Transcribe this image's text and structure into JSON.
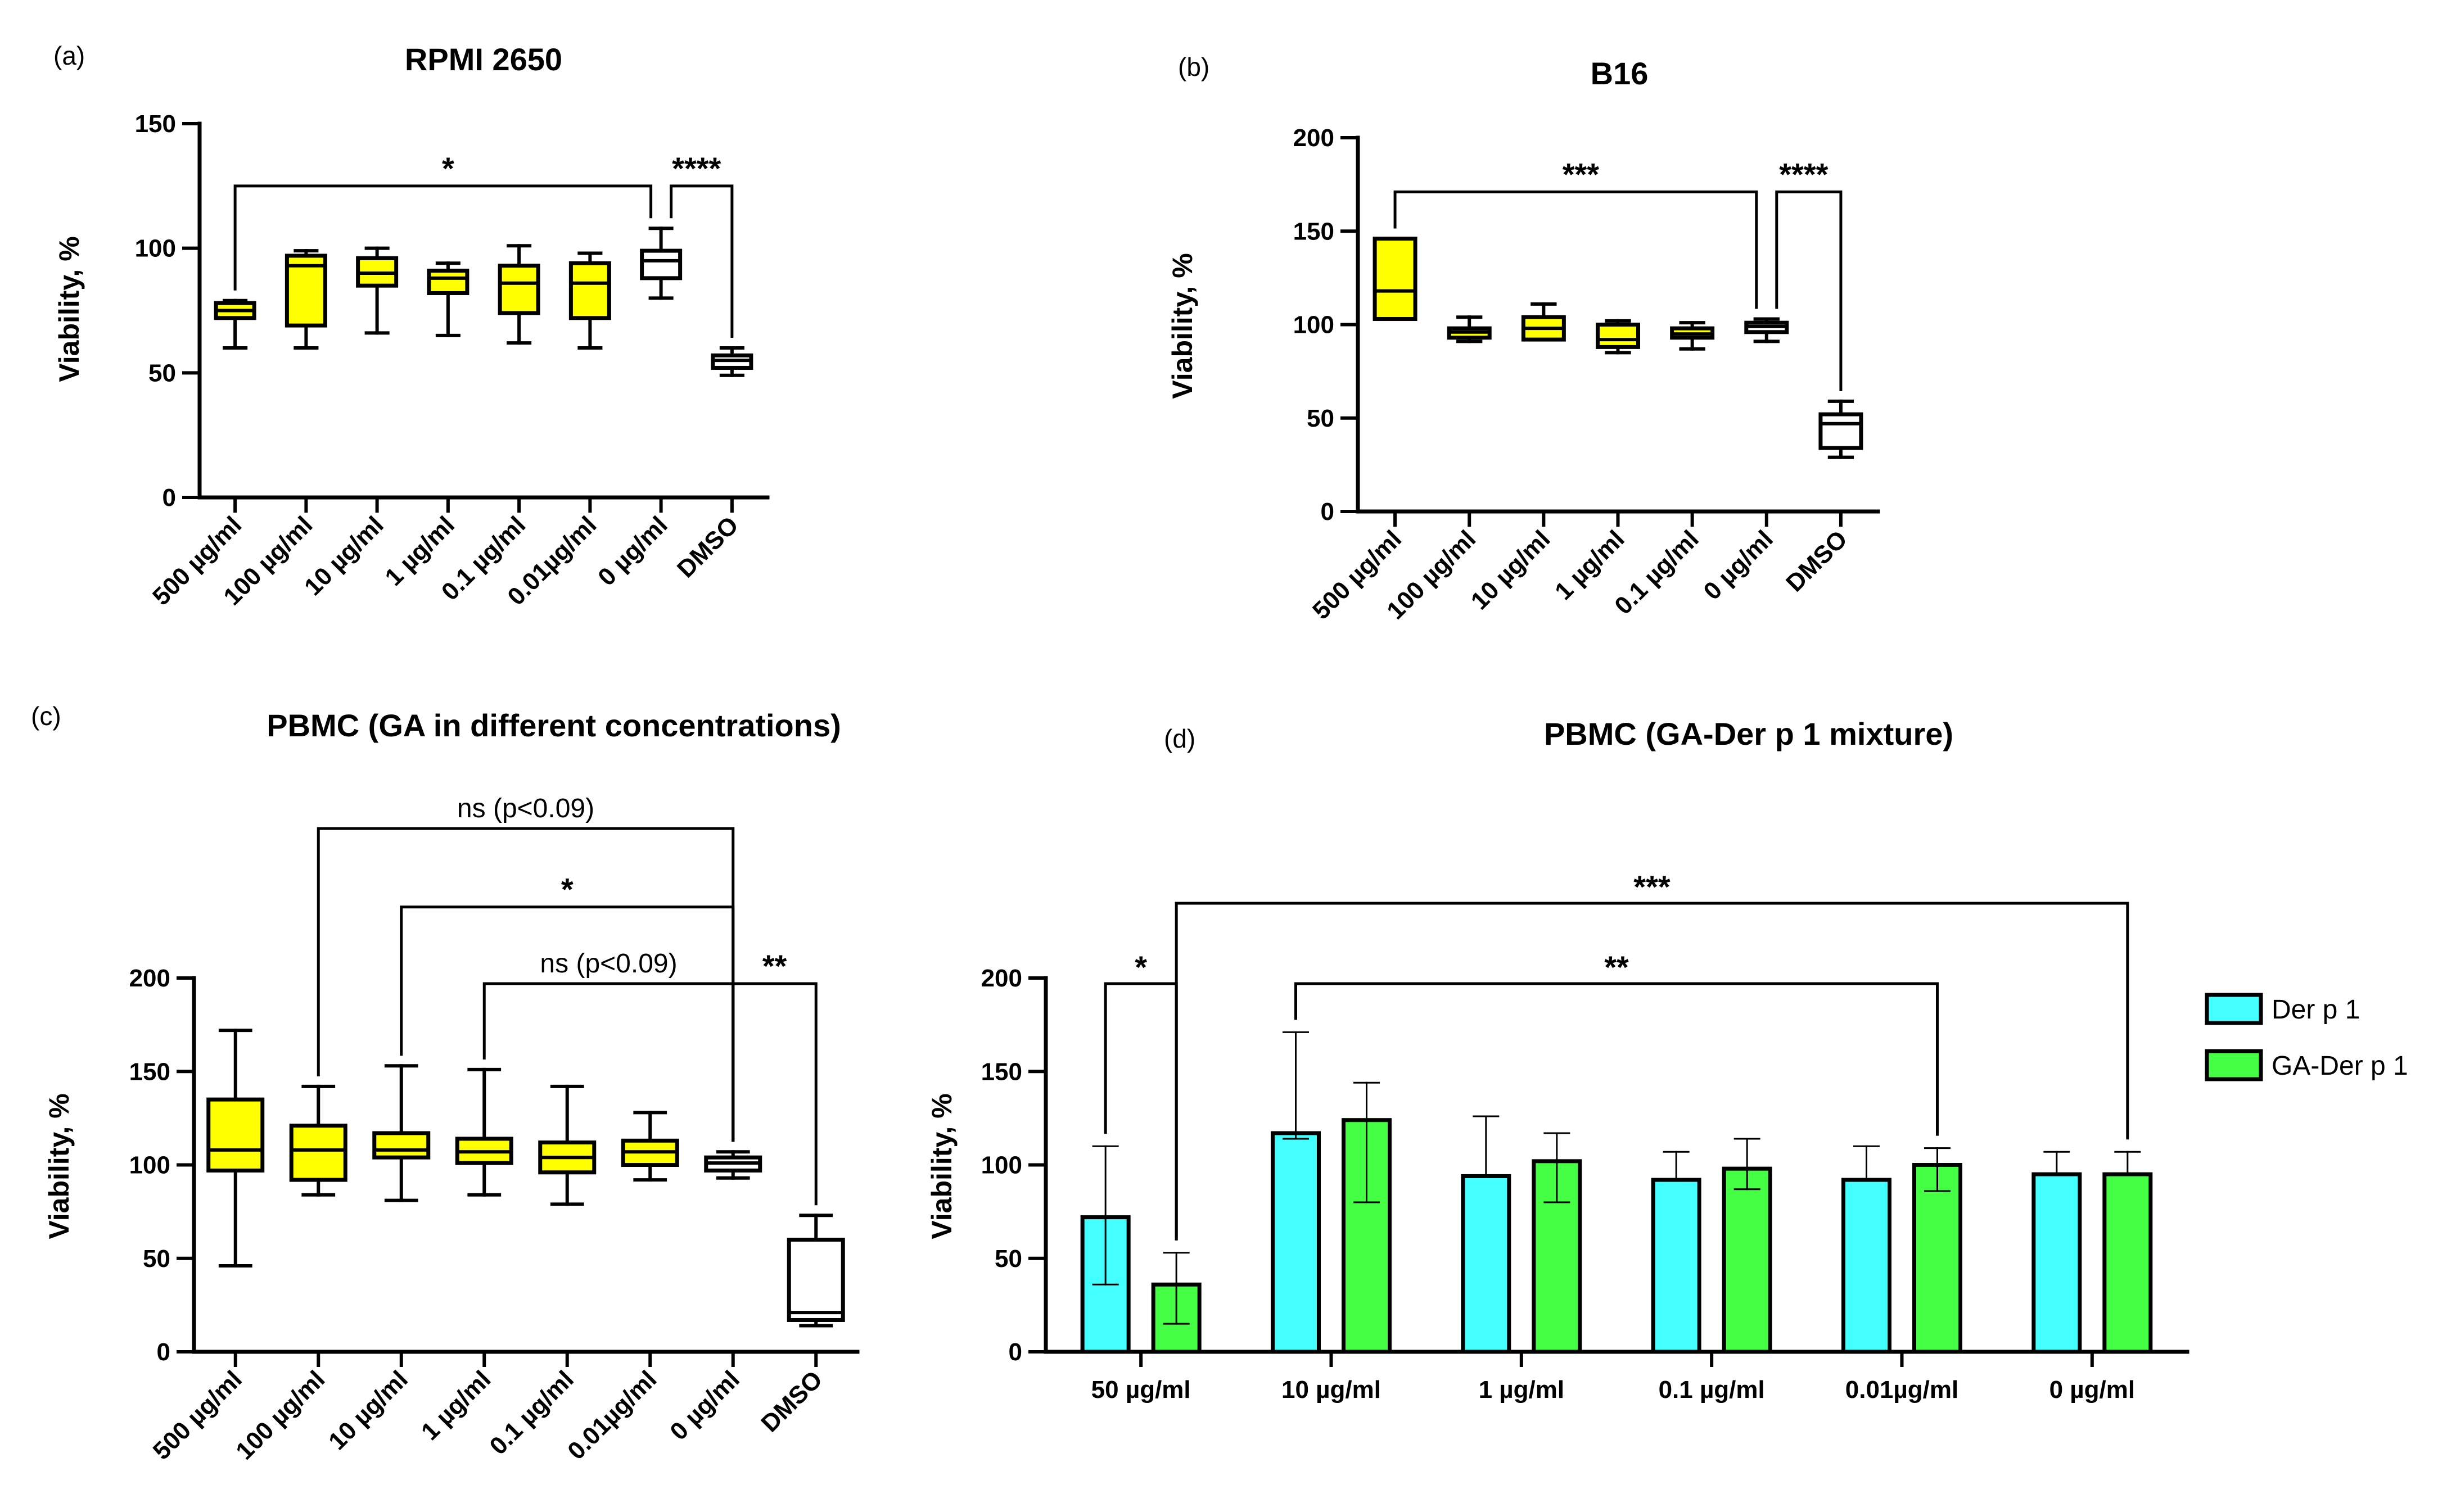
{
  "colors": {
    "yellow": "#ffff00",
    "white": "#ffffff",
    "cyan": "#44ffff",
    "green": "#44ff44",
    "black": "#000000"
  },
  "chart_data": [
    {
      "id": "a",
      "panel_label": "(a)",
      "type": "boxplot",
      "title": "RPMI 2650",
      "ylabel": "Viability, %",
      "ylim": [
        0,
        150
      ],
      "yticks": [
        0,
        50,
        100,
        150
      ],
      "categories": [
        "500 µg/ml",
        "100 µg/ml",
        "10 µg/ml",
        "1 µg/ml",
        "0.1 µg/ml",
        "0.01µg/ml",
        "0 µg/ml",
        "DMSO"
      ],
      "boxes": [
        {
          "min": 60,
          "q1": 72,
          "median": 75,
          "q3": 78,
          "max": 79,
          "fill": "yellow"
        },
        {
          "min": 60,
          "q1": 69,
          "median": 93,
          "q3": 97,
          "max": 99,
          "fill": "yellow"
        },
        {
          "min": 66,
          "q1": 85,
          "median": 90,
          "q3": 96,
          "max": 100,
          "fill": "yellow"
        },
        {
          "min": 65,
          "q1": 82,
          "median": 88,
          "q3": 91,
          "max": 94,
          "fill": "yellow"
        },
        {
          "min": 62,
          "q1": 74,
          "median": 86,
          "q3": 93,
          "max": 101,
          "fill": "yellow"
        },
        {
          "min": 60,
          "q1": 72,
          "median": 86,
          "q3": 94,
          "max": 98,
          "fill": "yellow"
        },
        {
          "min": 80,
          "q1": 88,
          "median": 95,
          "q3": 99,
          "max": 108,
          "fill": "white"
        },
        {
          "min": 49,
          "q1": 52,
          "median": 55,
          "q3": 57,
          "max": 60,
          "fill": "white"
        }
      ],
      "brackets": [
        {
          "from": 0,
          "to": 6,
          "level": 125,
          "label": "*"
        },
        {
          "from": 6,
          "to": 7,
          "level": 125,
          "label": "****"
        }
      ]
    },
    {
      "id": "b",
      "panel_label": "(b)",
      "type": "boxplot",
      "title": "B16",
      "ylabel": "Viability, %",
      "ylim": [
        0,
        200
      ],
      "yticks": [
        0,
        50,
        100,
        150,
        200
      ],
      "categories": [
        "500 µg/ml",
        "100 µg/ml",
        "10 µg/ml",
        "1 µg/ml",
        "0.1 µg/ml",
        "0 µg/ml",
        "DMSO"
      ],
      "boxes": [
        {
          "min": 103,
          "q1": 103,
          "median": 118,
          "q3": 146,
          "max": 146,
          "fill": "yellow"
        },
        {
          "min": 91,
          "q1": 93,
          "median": 96,
          "q3": 98,
          "max": 104,
          "fill": "yellow"
        },
        {
          "min": 92,
          "q1": 92,
          "median": 98,
          "q3": 104,
          "max": 111,
          "fill": "yellow"
        },
        {
          "min": 85,
          "q1": 88,
          "median": 92,
          "q3": 100,
          "max": 102,
          "fill": "yellow"
        },
        {
          "min": 87,
          "q1": 93,
          "median": 95,
          "q3": 98,
          "max": 101,
          "fill": "yellow"
        },
        {
          "min": 91,
          "q1": 96,
          "median": 99,
          "q3": 101,
          "max": 103,
          "fill": "white"
        },
        {
          "min": 29,
          "q1": 34,
          "median": 47,
          "q3": 52,
          "max": 59,
          "fill": "white"
        }
      ],
      "brackets": [
        {
          "from": 0,
          "to": 5,
          "level": 171,
          "label": "***"
        },
        {
          "from": 5,
          "to": 6,
          "level": 171,
          "label": "****"
        }
      ]
    },
    {
      "id": "c",
      "panel_label": "(c)",
      "type": "boxplot",
      "title": "PBMC (GA in different concentrations)",
      "ylabel": "Viability, %",
      "ylim": [
        0,
        200
      ],
      "yticks": [
        0,
        50,
        100,
        150,
        200
      ],
      "categories": [
        "500 µg/ml",
        "100 µg/ml",
        "10 µg/ml",
        "1 µg/ml",
        "0.1 µg/ml",
        "0.01µg/ml",
        "0 µg/ml",
        "DMSO"
      ],
      "boxes": [
        {
          "min": 46,
          "q1": 97,
          "median": 108,
          "q3": 135,
          "max": 172,
          "fill": "yellow"
        },
        {
          "min": 84,
          "q1": 92,
          "median": 108,
          "q3": 121,
          "max": 142,
          "fill": "yellow"
        },
        {
          "min": 81,
          "q1": 104,
          "median": 108,
          "q3": 117,
          "max": 153,
          "fill": "yellow"
        },
        {
          "min": 84,
          "q1": 101,
          "median": 107,
          "q3": 114,
          "max": 151,
          "fill": "yellow"
        },
        {
          "min": 79,
          "q1": 96,
          "median": 104,
          "q3": 112,
          "max": 142,
          "fill": "yellow"
        },
        {
          "min": 92,
          "q1": 100,
          "median": 107,
          "q3": 113,
          "max": 128,
          "fill": "yellow"
        },
        {
          "min": 93,
          "q1": 97,
          "median": 101,
          "q3": 104,
          "max": 107,
          "fill": "white"
        },
        {
          "min": 14,
          "q1": 17,
          "median": 21,
          "q3": 60,
          "max": 73,
          "fill": "white"
        }
      ],
      "brackets": [
        {
          "from": 1,
          "to": 6,
          "level": 280,
          "label": "ns (p<0.09)"
        },
        {
          "from": 2,
          "to": 6,
          "level": 238,
          "label": "*"
        },
        {
          "from": 3,
          "to": 6,
          "level": 197,
          "label": "ns (p<0.09)"
        },
        {
          "from": 6,
          "to": 7,
          "level": 197,
          "label": "**"
        }
      ]
    },
    {
      "id": "d",
      "panel_label": "(d)",
      "type": "bar",
      "title": "PBMC (GA-Der p 1 mixture)",
      "ylabel": "Viability, %",
      "ylim": [
        0,
        200
      ],
      "yticks": [
        0,
        50,
        100,
        150,
        200
      ],
      "categories": [
        "50 µg/ml",
        "10 µg/ml",
        "1 µg/ml",
        "0.1 µg/ml",
        "0.01µg/ml",
        "0 µg/ml"
      ],
      "series": [
        {
          "name": "Der p 1",
          "color": "cyan",
          "values": [
            72,
            117,
            94,
            92,
            92,
            95
          ],
          "err_low": [
            36,
            114,
            94,
            92,
            92,
            95
          ],
          "err_high": [
            110,
            171,
            126,
            107,
            110,
            107
          ]
        },
        {
          "name": "GA-Der p 1",
          "color": "green",
          "values": [
            36,
            124,
            102,
            98,
            100,
            95
          ],
          "err_low": [
            15,
            80,
            80,
            87,
            86,
            95
          ],
          "err_high": [
            53,
            144,
            117,
            114,
            109,
            107
          ]
        }
      ],
      "brackets": [
        {
          "cat_from": 0,
          "s_from": 0,
          "cat_to": 0,
          "s_to": 1,
          "level": 197,
          "label": "*"
        },
        {
          "cat_from": 1,
          "s_from": 0,
          "cat_to": 4,
          "s_to": 1,
          "level": 197,
          "label": "**"
        },
        {
          "cat_from": 0,
          "s_from": 1,
          "cat_to": 5,
          "s_to": 1,
          "level": 240,
          "label": "***"
        }
      ]
    }
  ]
}
